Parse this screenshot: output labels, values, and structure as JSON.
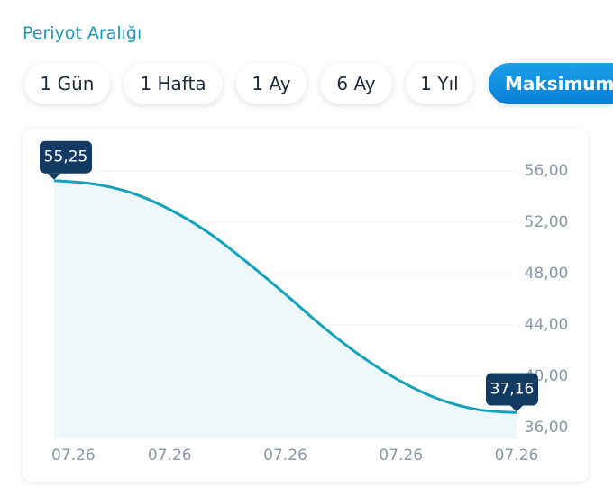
{
  "header": {
    "title": "Periyot Aralığı"
  },
  "buttons": [
    "1 Gün",
    "1 Hafta",
    "1 Ay",
    "6 Ay",
    "1 Yıl",
    "Maksimum"
  ],
  "chart_data": {
    "type": "area",
    "x": [
      0,
      1,
      2,
      3,
      4,
      5,
      6,
      7,
      8,
      9,
      10,
      11,
      12
    ],
    "values": [
      55.25,
      55.0,
      54.3,
      53.0,
      51.2,
      48.9,
      46.4,
      43.8,
      41.5,
      39.6,
      38.2,
      37.4,
      37.16
    ],
    "value_labels": [
      "55,25",
      null,
      null,
      null,
      null,
      null,
      null,
      null,
      null,
      null,
      null,
      null,
      "37,16"
    ],
    "color": "#14a3b8",
    "xlim": [
      0,
      12
    ],
    "xticks": [
      {
        "value": 0.5,
        "label": "07.26"
      },
      {
        "value": 3,
        "label": "07.26"
      },
      {
        "value": 6,
        "label": "07.26"
      },
      {
        "value": 9,
        "label": "07.26"
      },
      {
        "value": 12,
        "label": "07.26"
      }
    ],
    "ylim": [
      36,
      56
    ],
    "yticks": [
      {
        "value": 36,
        "label": "36,00"
      },
      {
        "value": 40,
        "label": "40,00"
      },
      {
        "value": 44,
        "label": "44,00"
      },
      {
        "value": 48,
        "label": "48,00"
      },
      {
        "value": 52,
        "label": "52,00"
      },
      {
        "value": 56,
        "label": "56,00"
      }
    ],
    "grid": true
  }
}
